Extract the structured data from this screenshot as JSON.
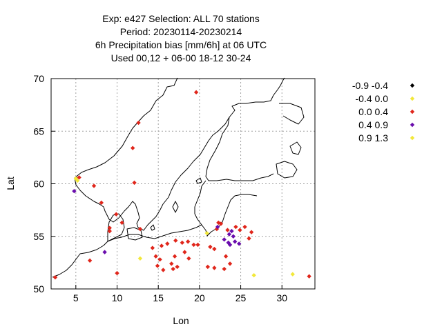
{
  "chart_data": {
    "type": "scatter",
    "title_lines": [
      "Exp: e427   Selection: ALL     70 stations",
      "Period: 20230114-20230214",
      "6h Precipitation bias [mm/6h] at  06 UTC",
      "Used  00,12  + 06-00 18-12 30-24"
    ],
    "xlabel": "Lon",
    "ylabel": "Lat",
    "xlim": [
      2,
      34
    ],
    "ylim": [
      50,
      70
    ],
    "xticks": [
      5,
      10,
      15,
      20,
      25,
      30
    ],
    "yticks": [
      50,
      55,
      60,
      65,
      70
    ],
    "grid": true,
    "legend_position": "right",
    "series": [
      {
        "name": "-0.9 -0.4",
        "color": "#000000",
        "points": []
      },
      {
        "name": "-0.4 0.0",
        "color": "#f2e83a",
        "points": [
          [
            12.8,
            52.9
          ],
          [
            26.6,
            51.3
          ],
          [
            31.3,
            51.4
          ],
          [
            5.0,
            60.5
          ]
        ]
      },
      {
        "name": "0.0 0.4",
        "color": "#e0261b",
        "points": [
          [
            2.5,
            51.1
          ],
          [
            5.4,
            60.6
          ],
          [
            6.7,
            52.7
          ],
          [
            7.2,
            59.8
          ],
          [
            8.1,
            58.2
          ],
          [
            9.1,
            55.5
          ],
          [
            9.1,
            55.8
          ],
          [
            9.9,
            57.1
          ],
          [
            10.6,
            56.3
          ],
          [
            10.0,
            51.5
          ],
          [
            11.9,
            63.4
          ],
          [
            12.1,
            60.1
          ],
          [
            12.6,
            65.8
          ],
          [
            12.8,
            55.7
          ],
          [
            14.3,
            53.9
          ],
          [
            14.7,
            53.1
          ],
          [
            14.9,
            52.2
          ],
          [
            15.4,
            54.1
          ],
          [
            15.2,
            52.8
          ],
          [
            15.6,
            51.8
          ],
          [
            16.1,
            54.3
          ],
          [
            16.6,
            52.4
          ],
          [
            16.8,
            51.9
          ],
          [
            17.0,
            53.1
          ],
          [
            17.1,
            54.6
          ],
          [
            17.3,
            52.1
          ],
          [
            17.9,
            54.4
          ],
          [
            18.2,
            53.5
          ],
          [
            18.6,
            54.5
          ],
          [
            18.7,
            52.9
          ],
          [
            19.3,
            54.2
          ],
          [
            19.8,
            54.2
          ],
          [
            19.6,
            68.7
          ],
          [
            21.0,
            52.1
          ],
          [
            21.3,
            54.0
          ],
          [
            21.8,
            52.0
          ],
          [
            21.8,
            53.8
          ],
          [
            22.1,
            55.7
          ],
          [
            22.3,
            56.3
          ],
          [
            22.6,
            56.2
          ],
          [
            23.0,
            51.9
          ],
          [
            23.2,
            53.1
          ],
          [
            23.4,
            55.6
          ],
          [
            23.7,
            52.4
          ],
          [
            24.4,
            55.9
          ],
          [
            24.9,
            55.6
          ],
          [
            25.5,
            55.9
          ],
          [
            26.0,
            54.8
          ],
          [
            26.3,
            55.4
          ],
          [
            33.3,
            51.2
          ]
        ]
      },
      {
        "name": "0.4 0.9",
        "color": "#6a0dad",
        "points": [
          [
            4.8,
            59.3
          ],
          [
            8.5,
            53.5
          ],
          [
            22.2,
            55.9
          ],
          [
            23.0,
            54.7
          ],
          [
            23.5,
            54.4
          ],
          [
            23.7,
            54.2
          ],
          [
            24.1,
            55.0
          ],
          [
            24.3,
            54.5
          ],
          [
            24.8,
            54.3
          ],
          [
            23.9,
            55.5
          ],
          [
            23.6,
            55.2
          ]
        ]
      },
      {
        "name": "0.9 1.3",
        "color": "#f2e83a",
        "points": [
          [
            20.9,
            55.3
          ],
          [
            5.2,
            60.3
          ]
        ]
      }
    ]
  }
}
